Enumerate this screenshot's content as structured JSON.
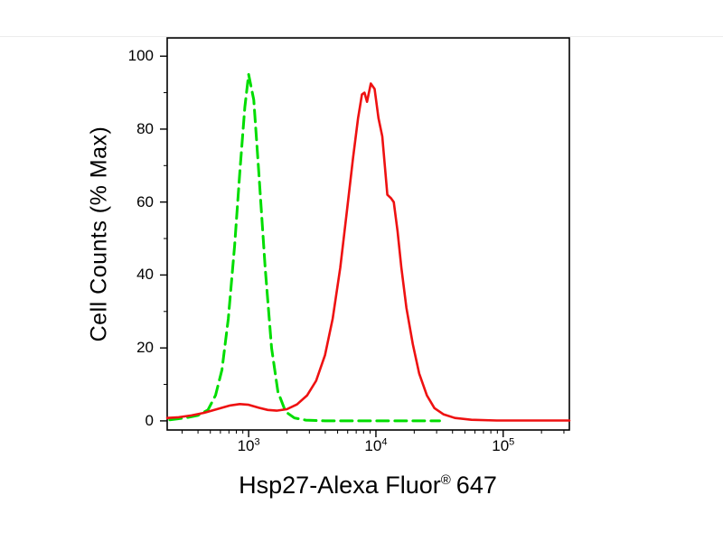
{
  "chart_data": {
    "type": "line",
    "subtype": "flow-cytometry-histogram",
    "title": "",
    "ylabel": "Cell Counts (% Max)",
    "xlabel_main": "Hsp27-Alexa Fluor",
    "xlabel_sup": "®",
    "xlabel_suffix": "647",
    "x_scale": "log10",
    "xlim_log10": [
      2.36,
      5.52
    ],
    "ylim": [
      -2.5,
      105
    ],
    "grid": "off",
    "legend": "none",
    "y_major_ticks": [
      0,
      20,
      40,
      60,
      80,
      100
    ],
    "y_minor_ticks": [
      10,
      30,
      50,
      70,
      90
    ],
    "x_major_ticks": [
      {
        "log10": 3,
        "base": "10",
        "exp": "3"
      },
      {
        "log10": 4,
        "base": "10",
        "exp": "4"
      },
      {
        "log10": 5,
        "base": "10",
        "exp": "5"
      }
    ],
    "axis_color": "#000000",
    "series": [
      {
        "name": "green-dashed",
        "color": "#00dd00",
        "style": "dashed",
        "peak_log10x": 3.0,
        "peak_y": 95,
        "points_log10x_y": [
          [
            2.38,
            0.3
          ],
          [
            2.5,
            0.8
          ],
          [
            2.6,
            1.5
          ],
          [
            2.68,
            3
          ],
          [
            2.74,
            7
          ],
          [
            2.79,
            14
          ],
          [
            2.84,
            28
          ],
          [
            2.89,
            48
          ],
          [
            2.93,
            68
          ],
          [
            2.97,
            86
          ],
          [
            3.0,
            95
          ],
          [
            3.04,
            88
          ],
          [
            3.08,
            68
          ],
          [
            3.13,
            42
          ],
          [
            3.18,
            20
          ],
          [
            3.23,
            8
          ],
          [
            3.29,
            2.5
          ],
          [
            3.36,
            0.8
          ],
          [
            3.45,
            0.2
          ],
          [
            3.6,
            0
          ],
          [
            3.9,
            0
          ],
          [
            4.2,
            0
          ],
          [
            4.5,
            0
          ]
        ]
      },
      {
        "name": "red-solid",
        "color": "#ee1111",
        "style": "solid",
        "peak_log10x": 3.96,
        "peak_y": 92.5,
        "points_log10x_y": [
          [
            2.36,
            0.8
          ],
          [
            2.45,
            1
          ],
          [
            2.55,
            1.5
          ],
          [
            2.65,
            2.2
          ],
          [
            2.75,
            3.2
          ],
          [
            2.85,
            4.2
          ],
          [
            2.93,
            4.6
          ],
          [
            3.0,
            4.4
          ],
          [
            3.08,
            3.6
          ],
          [
            3.15,
            3.0
          ],
          [
            3.22,
            2.8
          ],
          [
            3.3,
            3.2
          ],
          [
            3.38,
            4.5
          ],
          [
            3.46,
            7
          ],
          [
            3.53,
            11
          ],
          [
            3.6,
            18
          ],
          [
            3.66,
            28
          ],
          [
            3.72,
            42
          ],
          [
            3.77,
            57
          ],
          [
            3.82,
            72
          ],
          [
            3.86,
            83
          ],
          [
            3.89,
            89.5
          ],
          [
            3.91,
            90
          ],
          [
            3.93,
            87.5
          ],
          [
            3.96,
            92.5
          ],
          [
            3.99,
            91
          ],
          [
            4.02,
            83
          ],
          [
            4.05,
            78
          ],
          [
            4.07,
            70
          ],
          [
            4.09,
            62
          ],
          [
            4.12,
            61
          ],
          [
            4.14,
            60
          ],
          [
            4.17,
            52
          ],
          [
            4.2,
            42
          ],
          [
            4.24,
            31
          ],
          [
            4.29,
            21
          ],
          [
            4.34,
            13
          ],
          [
            4.4,
            7
          ],
          [
            4.46,
            3.5
          ],
          [
            4.53,
            1.8
          ],
          [
            4.62,
            0.8
          ],
          [
            4.75,
            0.3
          ],
          [
            4.95,
            0.1
          ],
          [
            5.2,
            0.1
          ],
          [
            5.52,
            0.1
          ]
        ]
      }
    ]
  }
}
